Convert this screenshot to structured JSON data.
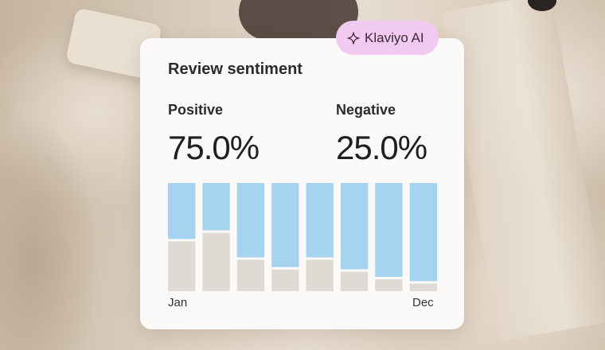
{
  "card": {
    "title": "Review sentiment",
    "positive_label": "Positive",
    "positive_value": "75.0%",
    "negative_label": "Negative",
    "negative_value": "25.0%"
  },
  "badge": {
    "label": "Klaviyo AI",
    "icon": "sparkle-icon"
  },
  "chart_data": {
    "type": "bar",
    "stacked": true,
    "categories": [
      "",
      "",
      "",
      "",
      "",
      "",
      "",
      ""
    ],
    "x_start_label": "Jan",
    "x_end_label": "Dec",
    "series": [
      {
        "values": [
          46,
          54,
          29,
          20,
          29,
          18,
          11,
          7
        ]
      },
      {
        "values": [
          54,
          46,
          71,
          80,
          71,
          82,
          89,
          93
        ]
      }
    ],
    "ylim": [
      0,
      100
    ],
    "colors": [
      "#dedad4",
      "#a6d3ef"
    ]
  }
}
